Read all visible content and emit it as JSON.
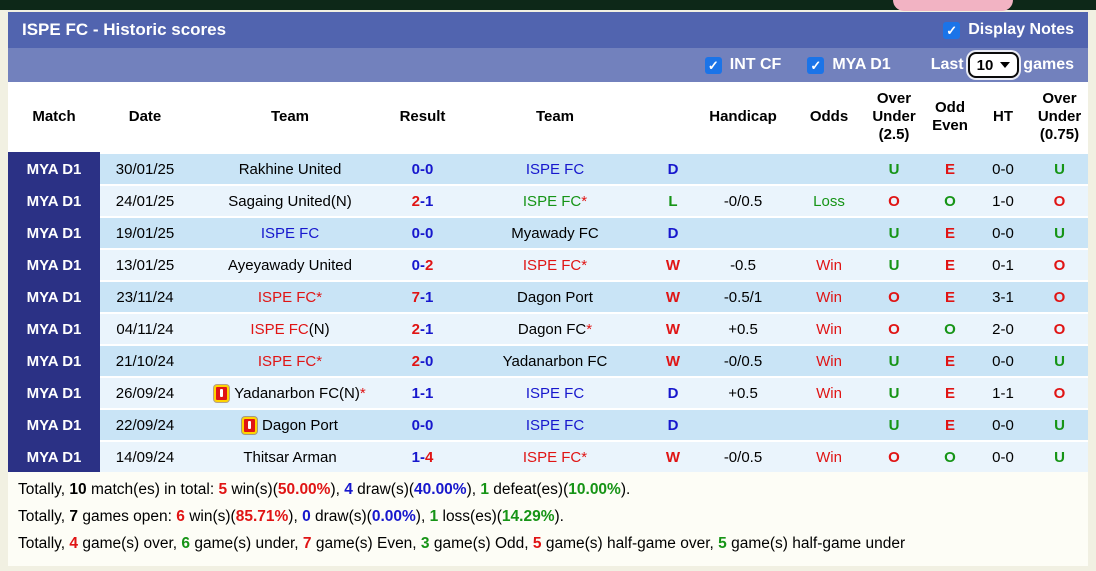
{
  "header": {
    "title": "ISPE FC - Historic scores",
    "display_notes_label": "Display Notes",
    "filters": {
      "int_cf_label": "INT CF",
      "mya_d1_label": "MYA D1",
      "last_label": "Last",
      "last_games_value": "10",
      "games_label": "games"
    }
  },
  "colors": {
    "k": "#000000",
    "b": "#1717cd",
    "r": "#e01414",
    "g": "#169416"
  },
  "accent": {
    "title_bar": "#5164af",
    "sub_bar": "#7281bd",
    "league_badge_bg": "#2b3185",
    "checkbox_blue": "#1b74e8",
    "row_odd": "#c9e4f6",
    "row_even": "#eaf4fc"
  },
  "columns": [
    {
      "key": "match",
      "label": "Match"
    },
    {
      "key": "date",
      "label": "Date"
    },
    {
      "key": "team1",
      "label": "Team"
    },
    {
      "key": "result",
      "label": "Result"
    },
    {
      "key": "team2",
      "label": "Team"
    },
    {
      "key": "letter",
      "label": ""
    },
    {
      "key": "handicap",
      "label": "Handicap"
    },
    {
      "key": "odds",
      "label": "Odds"
    },
    {
      "key": "ou25",
      "label": "Over\nUnder\n(2.5)"
    },
    {
      "key": "oddeven",
      "label": "Odd\nEven"
    },
    {
      "key": "ht",
      "label": "HT"
    },
    {
      "key": "ou075",
      "label": "Over\nUnder\n(0.75)"
    }
  ],
  "rows": [
    {
      "league": "MYA D1",
      "date": "30/01/25",
      "team1": {
        "card": false,
        "parts": [
          {
            "t": "Rakhine United",
            "c": "k"
          }
        ]
      },
      "score": [
        {
          "t": "0-0",
          "c": "b"
        }
      ],
      "team2": {
        "card": false,
        "parts": [
          {
            "t": "ISPE FC",
            "c": "b"
          }
        ]
      },
      "letter": {
        "t": "D",
        "c": "b"
      },
      "handicap": "",
      "odds": {
        "t": "",
        "c": "k"
      },
      "ou25": {
        "t": "U",
        "c": "g"
      },
      "oe": {
        "t": "E",
        "c": "r"
      },
      "ht": "0-0",
      "ou075": {
        "t": "U",
        "c": "g"
      }
    },
    {
      "league": "MYA D1",
      "date": "24/01/25",
      "team1": {
        "card": false,
        "parts": [
          {
            "t": "Sagaing United(N)",
            "c": "k"
          }
        ]
      },
      "score": [
        {
          "t": "2",
          "c": "r"
        },
        {
          "t": "-1",
          "c": "b"
        }
      ],
      "team2": {
        "card": false,
        "parts": [
          {
            "t": "ISPE FC",
            "c": "g"
          },
          {
            "t": "*",
            "c": "r"
          }
        ]
      },
      "letter": {
        "t": "L",
        "c": "g"
      },
      "handicap": "-0/0.5",
      "odds": {
        "t": "Loss",
        "c": "g"
      },
      "ou25": {
        "t": "O",
        "c": "r"
      },
      "oe": {
        "t": "O",
        "c": "g"
      },
      "ht": "1-0",
      "ou075": {
        "t": "O",
        "c": "r"
      }
    },
    {
      "league": "MYA D1",
      "date": "19/01/25",
      "team1": {
        "card": false,
        "parts": [
          {
            "t": "ISPE FC",
            "c": "b"
          }
        ]
      },
      "score": [
        {
          "t": "0-0",
          "c": "b"
        }
      ],
      "team2": {
        "card": false,
        "parts": [
          {
            "t": "Myawady FC",
            "c": "k"
          }
        ]
      },
      "letter": {
        "t": "D",
        "c": "b"
      },
      "handicap": "",
      "odds": {
        "t": "",
        "c": "k"
      },
      "ou25": {
        "t": "U",
        "c": "g"
      },
      "oe": {
        "t": "E",
        "c": "r"
      },
      "ht": "0-0",
      "ou075": {
        "t": "U",
        "c": "g"
      }
    },
    {
      "league": "MYA D1",
      "date": "13/01/25",
      "team1": {
        "card": false,
        "parts": [
          {
            "t": "Ayeyawady United",
            "c": "k"
          }
        ]
      },
      "score": [
        {
          "t": "0-",
          "c": "b"
        },
        {
          "t": "2",
          "c": "r"
        }
      ],
      "team2": {
        "card": false,
        "parts": [
          {
            "t": "ISPE FC",
            "c": "r"
          },
          {
            "t": "*",
            "c": "r"
          }
        ]
      },
      "letter": {
        "t": "W",
        "c": "r"
      },
      "handicap": "-0.5",
      "odds": {
        "t": "Win",
        "c": "r"
      },
      "ou25": {
        "t": "U",
        "c": "g"
      },
      "oe": {
        "t": "E",
        "c": "r"
      },
      "ht": "0-1",
      "ou075": {
        "t": "O",
        "c": "r"
      }
    },
    {
      "league": "MYA D1",
      "date": "23/11/24",
      "team1": {
        "card": false,
        "parts": [
          {
            "t": "ISPE FC",
            "c": "r"
          },
          {
            "t": "*",
            "c": "r"
          }
        ]
      },
      "score": [
        {
          "t": "7",
          "c": "r"
        },
        {
          "t": "-1",
          "c": "b"
        }
      ],
      "team2": {
        "card": false,
        "parts": [
          {
            "t": "Dagon Port",
            "c": "k"
          }
        ]
      },
      "letter": {
        "t": "W",
        "c": "r"
      },
      "handicap": "-0.5/1",
      "odds": {
        "t": "Win",
        "c": "r"
      },
      "ou25": {
        "t": "O",
        "c": "r"
      },
      "oe": {
        "t": "E",
        "c": "r"
      },
      "ht": "3-1",
      "ou075": {
        "t": "O",
        "c": "r"
      }
    },
    {
      "league": "MYA D1",
      "date": "04/11/24",
      "team1": {
        "card": false,
        "parts": [
          {
            "t": "ISPE FC",
            "c": "r"
          },
          {
            "t": "(N)",
            "c": "k"
          }
        ]
      },
      "score": [
        {
          "t": "2",
          "c": "r"
        },
        {
          "t": "-1",
          "c": "b"
        }
      ],
      "team2": {
        "card": false,
        "parts": [
          {
            "t": "Dagon FC",
            "c": "k"
          },
          {
            "t": "*",
            "c": "r"
          }
        ]
      },
      "letter": {
        "t": "W",
        "c": "r"
      },
      "handicap": "+0.5",
      "odds": {
        "t": "Win",
        "c": "r"
      },
      "ou25": {
        "t": "O",
        "c": "r"
      },
      "oe": {
        "t": "O",
        "c": "g"
      },
      "ht": "2-0",
      "ou075": {
        "t": "O",
        "c": "r"
      }
    },
    {
      "league": "MYA D1",
      "date": "21/10/24",
      "team1": {
        "card": false,
        "parts": [
          {
            "t": "ISPE FC",
            "c": "r"
          },
          {
            "t": "*",
            "c": "r"
          }
        ]
      },
      "score": [
        {
          "t": "2",
          "c": "r"
        },
        {
          "t": "-0",
          "c": "b"
        }
      ],
      "team2": {
        "card": false,
        "parts": [
          {
            "t": "Yadanarbon FC",
            "c": "k"
          }
        ]
      },
      "letter": {
        "t": "W",
        "c": "r"
      },
      "handicap": "-0/0.5",
      "odds": {
        "t": "Win",
        "c": "r"
      },
      "ou25": {
        "t": "U",
        "c": "g"
      },
      "oe": {
        "t": "E",
        "c": "r"
      },
      "ht": "0-0",
      "ou075": {
        "t": "U",
        "c": "g"
      }
    },
    {
      "league": "MYA D1",
      "date": "26/09/24",
      "team1": {
        "card": true,
        "parts": [
          {
            "t": "Yadanarbon FC(N)",
            "c": "k"
          },
          {
            "t": "*",
            "c": "r"
          }
        ]
      },
      "score": [
        {
          "t": "1-1",
          "c": "b"
        }
      ],
      "team2": {
        "card": false,
        "parts": [
          {
            "t": "ISPE FC",
            "c": "b"
          }
        ]
      },
      "letter": {
        "t": "D",
        "c": "b"
      },
      "handicap": "+0.5",
      "odds": {
        "t": "Win",
        "c": "r"
      },
      "ou25": {
        "t": "U",
        "c": "g"
      },
      "oe": {
        "t": "E",
        "c": "r"
      },
      "ht": "1-1",
      "ou075": {
        "t": "O",
        "c": "r"
      }
    },
    {
      "league": "MYA D1",
      "date": "22/09/24",
      "team1": {
        "card": true,
        "parts": [
          {
            "t": "Dagon Port",
            "c": "k"
          }
        ]
      },
      "score": [
        {
          "t": "0-0",
          "c": "b"
        }
      ],
      "team2": {
        "card": false,
        "parts": [
          {
            "t": "ISPE FC",
            "c": "b"
          }
        ]
      },
      "letter": {
        "t": "D",
        "c": "b"
      },
      "handicap": "",
      "odds": {
        "t": "",
        "c": "k"
      },
      "ou25": {
        "t": "U",
        "c": "g"
      },
      "oe": {
        "t": "E",
        "c": "r"
      },
      "ht": "0-0",
      "ou075": {
        "t": "U",
        "c": "g"
      }
    },
    {
      "league": "MYA D1",
      "date": "14/09/24",
      "team1": {
        "card": false,
        "parts": [
          {
            "t": "Thitsar Arman",
            "c": "k"
          }
        ]
      },
      "score": [
        {
          "t": "1-",
          "c": "b"
        },
        {
          "t": "4",
          "c": "r"
        }
      ],
      "team2": {
        "card": false,
        "parts": [
          {
            "t": "ISPE FC",
            "c": "r"
          },
          {
            "t": "*",
            "c": "r"
          }
        ]
      },
      "letter": {
        "t": "W",
        "c": "r"
      },
      "handicap": "-0/0.5",
      "odds": {
        "t": "Win",
        "c": "r"
      },
      "ou25": {
        "t": "O",
        "c": "r"
      },
      "oe": {
        "t": "O",
        "c": "g"
      },
      "ht": "0-0",
      "ou075": {
        "t": "U",
        "c": "g"
      }
    }
  ],
  "summary": [
    [
      {
        "t": "Totally, ",
        "c": "k"
      },
      {
        "t": "10",
        "c": "k",
        "b": true
      },
      {
        "t": " match(es) in total: ",
        "c": "k"
      },
      {
        "t": "5",
        "c": "r",
        "b": true
      },
      {
        "t": " win(s)(",
        "c": "k"
      },
      {
        "t": "50.00%",
        "c": "r",
        "b": true
      },
      {
        "t": "), ",
        "c": "k"
      },
      {
        "t": "4",
        "c": "b",
        "b": true
      },
      {
        "t": " draw(s)(",
        "c": "k"
      },
      {
        "t": "40.00%",
        "c": "b",
        "b": true
      },
      {
        "t": "), ",
        "c": "k"
      },
      {
        "t": "1",
        "c": "g",
        "b": true
      },
      {
        "t": " defeat(es)(",
        "c": "k"
      },
      {
        "t": "10.00%",
        "c": "g",
        "b": true
      },
      {
        "t": ").",
        "c": "k"
      }
    ],
    [
      {
        "t": "Totally, ",
        "c": "k"
      },
      {
        "t": "7",
        "c": "k",
        "b": true
      },
      {
        "t": " games open: ",
        "c": "k"
      },
      {
        "t": "6",
        "c": "r",
        "b": true
      },
      {
        "t": " win(s)(",
        "c": "k"
      },
      {
        "t": "85.71%",
        "c": "r",
        "b": true
      },
      {
        "t": "), ",
        "c": "k"
      },
      {
        "t": "0",
        "c": "b",
        "b": true
      },
      {
        "t": " draw(s)(",
        "c": "k"
      },
      {
        "t": "0.00%",
        "c": "b",
        "b": true
      },
      {
        "t": "), ",
        "c": "k"
      },
      {
        "t": "1",
        "c": "g",
        "b": true
      },
      {
        "t": " loss(es)(",
        "c": "k"
      },
      {
        "t": "14.29%",
        "c": "g",
        "b": true
      },
      {
        "t": ").",
        "c": "k"
      }
    ],
    [
      {
        "t": "Totally, ",
        "c": "k"
      },
      {
        "t": "4",
        "c": "r",
        "b": true
      },
      {
        "t": " game(s) over, ",
        "c": "k"
      },
      {
        "t": "6",
        "c": "g",
        "b": true
      },
      {
        "t": " game(s) under, ",
        "c": "k"
      },
      {
        "t": "7",
        "c": "r",
        "b": true
      },
      {
        "t": " game(s) Even, ",
        "c": "k"
      },
      {
        "t": "3",
        "c": "g",
        "b": true
      },
      {
        "t": " game(s) Odd, ",
        "c": "k"
      },
      {
        "t": "5",
        "c": "r",
        "b": true
      },
      {
        "t": " game(s) half-game over, ",
        "c": "k"
      },
      {
        "t": "5",
        "c": "g",
        "b": true
      },
      {
        "t": " game(s) half-game under",
        "c": "k"
      }
    ]
  ]
}
